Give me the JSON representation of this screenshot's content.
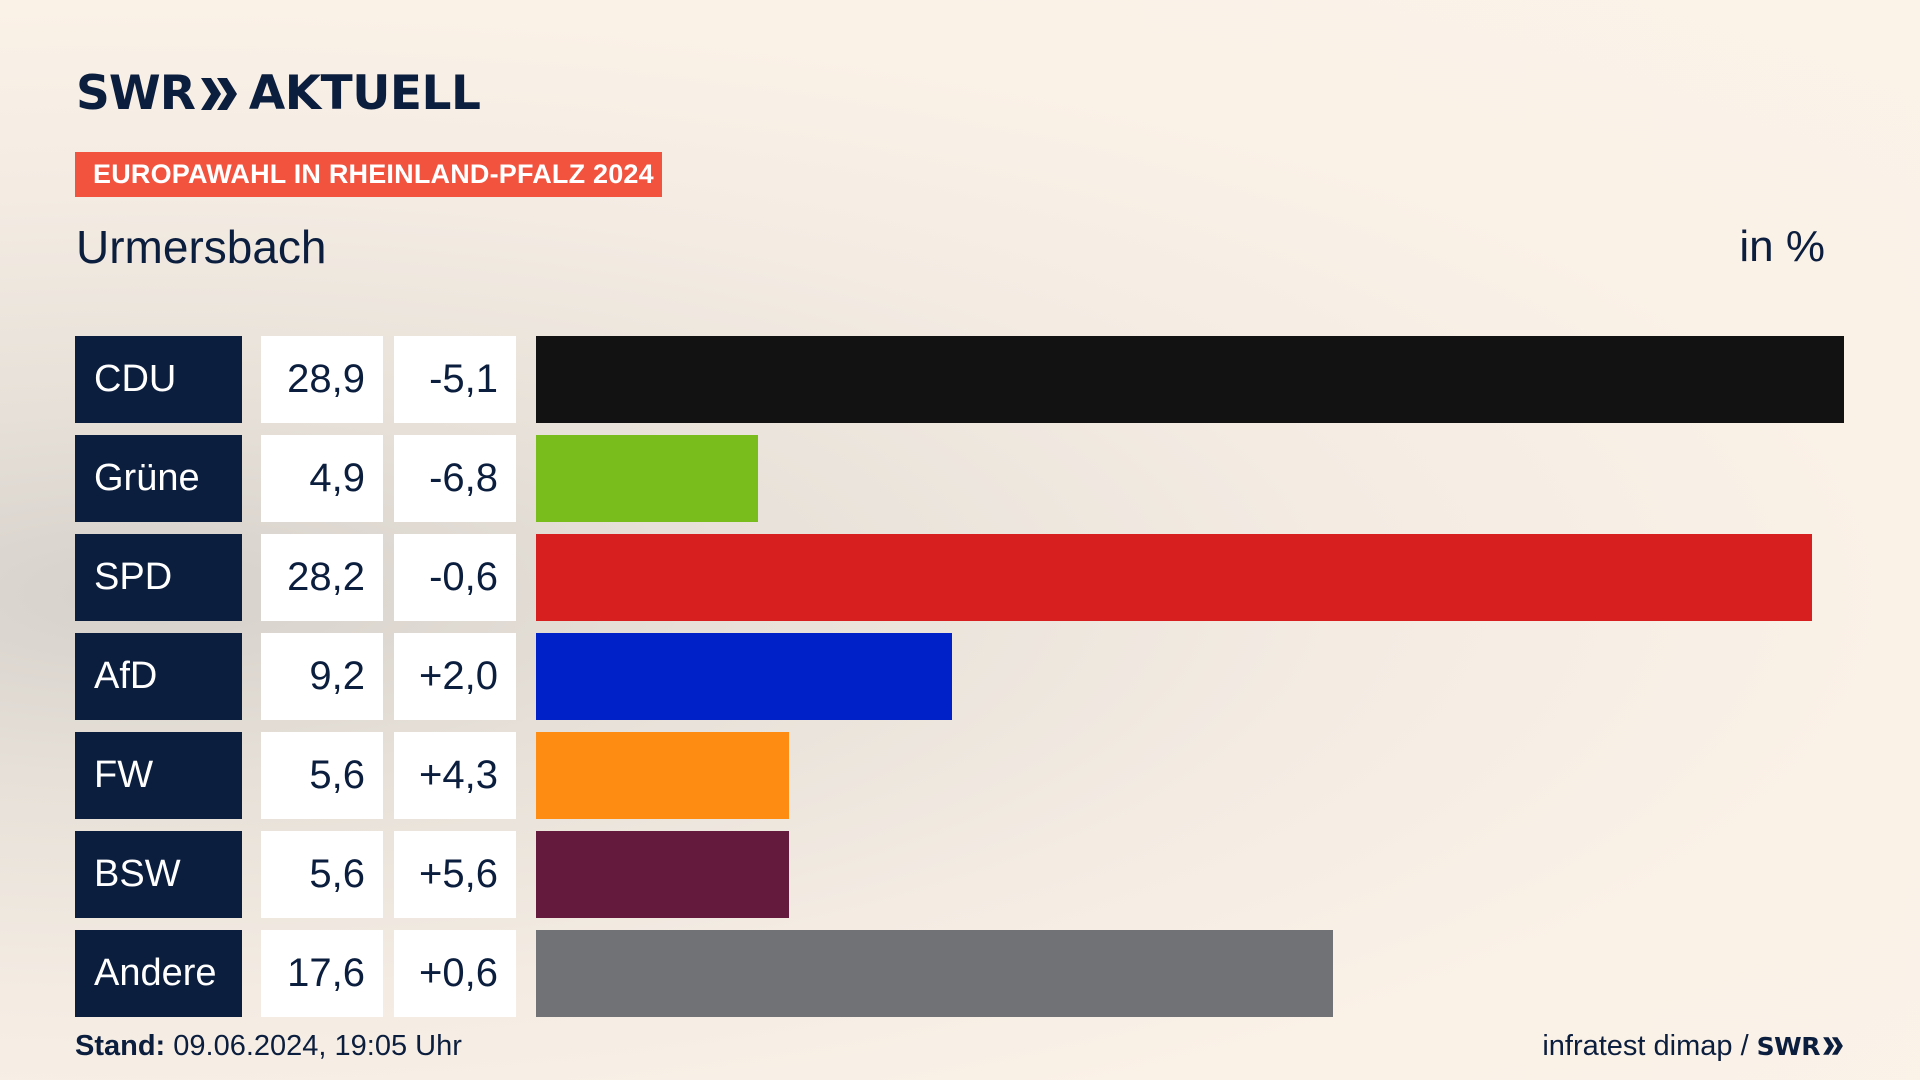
{
  "brand": {
    "logo_text": "SWR",
    "logo_suffix": "AKTUELL",
    "chevron_icon": "double-chevron-icon",
    "color": "#0c1e3e"
  },
  "header": {
    "tag": "EUROPAWAHL IN RHEINLAND-PFALZ 2024",
    "tag_color": "#f2533f",
    "place": "Urmersbach",
    "unit": "in %"
  },
  "chart_data": {
    "type": "bar",
    "orientation": "horizontal",
    "categories": [
      "CDU",
      "Grüne",
      "SPD",
      "AfD",
      "FW",
      "BSW",
      "Andere"
    ],
    "values": [
      28.9,
      4.9,
      28.2,
      9.2,
      5.6,
      5.6,
      17.6
    ],
    "value_labels": [
      "28,9",
      "4,9",
      "28,2",
      "9,2",
      "5,6",
      "5,6",
      "17,6"
    ],
    "diff_labels": [
      "-5,1",
      "-6,8",
      "-0,6",
      "+2,0",
      "+4,3",
      "+5,6",
      "+0,6"
    ],
    "colors": [
      "#121212",
      "#79bd1c",
      "#d71f1f",
      "#0020c8",
      "#ff8c12",
      "#641a3c",
      "#717275"
    ],
    "title": "Urmersbach",
    "ylabel": "in %",
    "grid": false
  },
  "footer": {
    "stand_label": "Stand:",
    "stand_value": "09.06.2024, 19:05 Uhr",
    "source": "infratest dimap /",
    "source_logo": "SWR"
  }
}
